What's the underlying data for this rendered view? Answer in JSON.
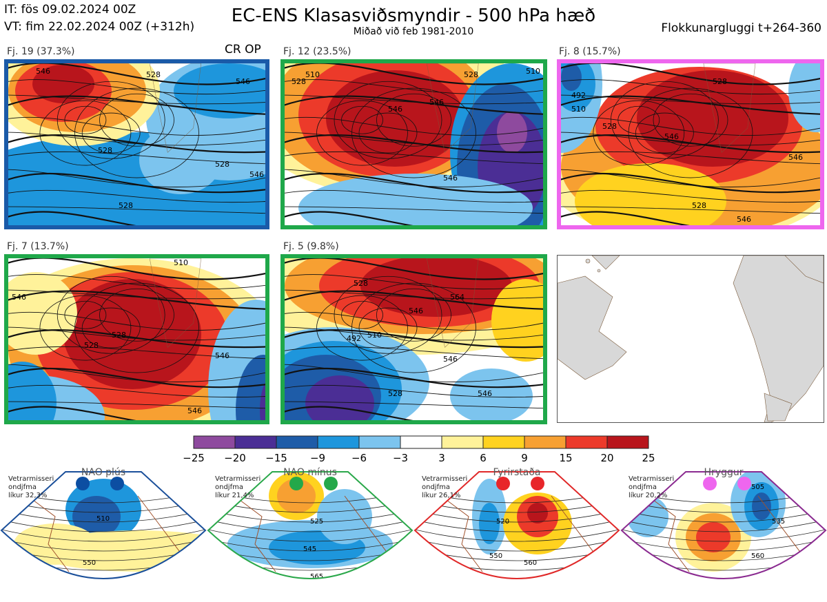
{
  "header": {
    "it_line": "IT: fös 09.02.2024 00Z",
    "vt_line": "VT: fim 22.02.2024 00Z  (+312h)",
    "title": "EC-ENS Klasasviðsmyndir - 500 hPa hæð",
    "subtitle": "Miðað við feb 1981-2010",
    "window": "Flokkunargluggi t+264-360"
  },
  "panels": [
    {
      "label": "Fj. 19 (37.3%)",
      "frame_color": "#1a5aa8",
      "extra": "CR OP",
      "contours": [
        "546",
        "528",
        "528",
        "528",
        "546",
        "528",
        "546"
      ]
    },
    {
      "label": "Fj. 12 (23.5%)",
      "frame_color": "#1fa84a",
      "contours": [
        "510",
        "528",
        "546",
        "546",
        "528",
        "510",
        "546"
      ]
    },
    {
      "label": "Fj. 8 (15.7%)",
      "frame_color": "#ee66ee",
      "contours": [
        "492",
        "510",
        "528",
        "546",
        "546",
        "528",
        "528",
        "546"
      ]
    },
    {
      "label": "Fj. 7 (13.7%)",
      "frame_color": "#1fa84a",
      "contours": [
        "546",
        "528",
        "510",
        "528",
        "546",
        "546"
      ]
    },
    {
      "label": "Fj. 5 (9.8%)",
      "frame_color": "#1fa84a",
      "contours": [
        "528",
        "564",
        "546",
        "492",
        "510",
        "528",
        "546",
        "546"
      ]
    }
  ],
  "colorbar": {
    "ticks": [
      "−25",
      "−20",
      "−15",
      "−9",
      "−6",
      "−3",
      "3",
      "6",
      "9",
      "15",
      "20",
      "25"
    ],
    "colors": [
      "#8e4a9e",
      "#4b2e95",
      "#1e5ca8",
      "#1e96dc",
      "#7cc4ee",
      "#ffffff",
      "#fff29a",
      "#ffd21f",
      "#f7a032",
      "#ec3a2a",
      "#b8151c"
    ]
  },
  "regimes": [
    {
      "title": "NAO plús",
      "dot_color": "#0c4ea2",
      "info1": "Vetrarmisseri",
      "info2": "ondjfma",
      "info3": "líkur 32,3%",
      "edge_color": "#1a4f9a",
      "contours": [
        "510",
        "550"
      ]
    },
    {
      "title": "NAO mínus",
      "dot_color": "#24a84a",
      "info1": "Vetrarmisseri",
      "info2": "ondjfma",
      "info3": "líkur 21,4%",
      "edge_color": "#2aa84a",
      "contours": [
        "525",
        "545",
        "565"
      ]
    },
    {
      "title": "Fyrirstaða",
      "dot_color": "#e8262a",
      "info1": "Vetrarmisseri",
      "info2": "ondjfma",
      "info3": "líkur 26,1%",
      "edge_color": "#e02828",
      "contours": [
        "520",
        "550",
        "560"
      ]
    },
    {
      "title": "Hryggur",
      "dot_color": "#ee66ee",
      "info1": "Vetrarmisseri",
      "info2": "ondjfma",
      "info3": "líkur 20,2%",
      "edge_color": "#8a2a90",
      "contours": [
        "505",
        "535",
        "560"
      ]
    }
  ]
}
